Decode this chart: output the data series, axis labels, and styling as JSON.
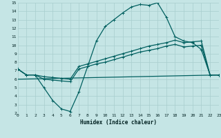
{
  "xlabel": "Humidex (Indice chaleur)",
  "xlim": [
    0,
    23
  ],
  "ylim": [
    2,
    15
  ],
  "xticks": [
    0,
    1,
    2,
    3,
    4,
    5,
    6,
    7,
    8,
    9,
    10,
    11,
    12,
    13,
    14,
    15,
    16,
    17,
    18,
    19,
    20,
    21,
    22,
    23
  ],
  "yticks": [
    2,
    3,
    4,
    5,
    6,
    7,
    8,
    9,
    10,
    11,
    12,
    13,
    14,
    15
  ],
  "bg_color": "#c5e5e5",
  "grid_color": "#a8cece",
  "line_color": "#005f5f",
  "line1_x": [
    0,
    1,
    2,
    3,
    4,
    5,
    6,
    7,
    8,
    9,
    10,
    11,
    12,
    13,
    14,
    15,
    16,
    17,
    18,
    19,
    20,
    21,
    22,
    23
  ],
  "line1_y": [
    7.2,
    6.5,
    6.5,
    5.0,
    3.5,
    2.5,
    2.2,
    4.5,
    7.5,
    10.5,
    12.2,
    13.0,
    13.8,
    14.5,
    14.8,
    14.7,
    15.0,
    13.3,
    11.0,
    10.5,
    10.3,
    9.5,
    6.5,
    6.5
  ],
  "line2_x": [
    0,
    1,
    2,
    3,
    4,
    5,
    6,
    7,
    8,
    9,
    10,
    11,
    12,
    13,
    14,
    15,
    16,
    17,
    18,
    19,
    20,
    21,
    22,
    23
  ],
  "line2_y": [
    7.2,
    6.5,
    6.5,
    6.3,
    6.2,
    6.1,
    6.0,
    7.5,
    7.8,
    8.1,
    8.4,
    8.7,
    9.0,
    9.3,
    9.6,
    9.9,
    10.1,
    10.3,
    10.6,
    10.3,
    10.4,
    10.5,
    6.5,
    6.5
  ],
  "line3_x": [
    0,
    1,
    2,
    3,
    4,
    5,
    6,
    7,
    8,
    9,
    10,
    11,
    12,
    13,
    14,
    15,
    16,
    17,
    18,
    19,
    20,
    21,
    22,
    23
  ],
  "line3_y": [
    7.2,
    6.5,
    6.5,
    6.0,
    5.9,
    5.8,
    5.7,
    7.2,
    7.5,
    7.8,
    8.0,
    8.3,
    8.6,
    8.9,
    9.2,
    9.4,
    9.6,
    9.9,
    10.1,
    9.8,
    9.9,
    10.0,
    6.5,
    6.5
  ],
  "line4_x": [
    0,
    23
  ],
  "line4_y": [
    6.0,
    6.5
  ],
  "markersize": 3,
  "linewidth": 0.9
}
